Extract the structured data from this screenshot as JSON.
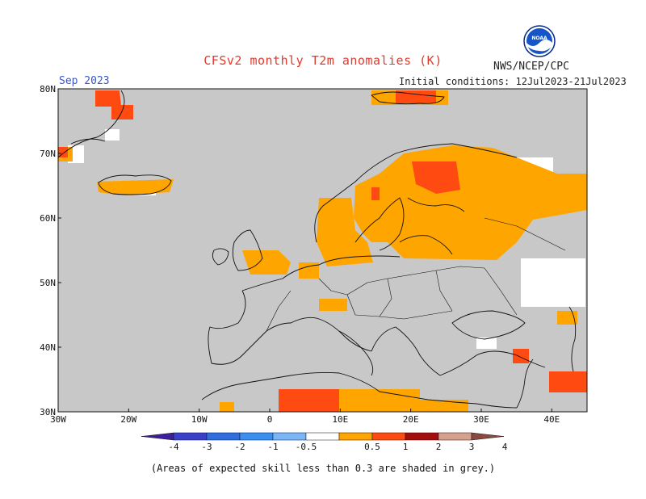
{
  "title": "CFSv2 monthly T2m anomalies (K)",
  "agency": "NWS/NCEP/CPC",
  "logo_text": "NOAA",
  "initial_conditions": "Initial conditions: 12Jul2023-21Jul2023",
  "valid_month": "Sep 2023",
  "footnote": "(Areas of expected skill less than 0.3 are shaded in grey.)",
  "map": {
    "lon_range": [
      -30,
      45
    ],
    "lat_range": [
      30,
      80
    ],
    "lon_ticks": [
      "30W",
      "20W",
      "10W",
      "0",
      "10E",
      "20E",
      "30E",
      "40E"
    ],
    "lat_ticks": [
      "30N",
      "40N",
      "50N",
      "60N",
      "70N",
      "80N"
    ],
    "ocean_color": "#c8c8c8",
    "coast_color": "#111111"
  },
  "colorbar": {
    "labels": [
      "-4",
      "-3",
      "-2",
      "-1",
      "-0.5",
      "0.5",
      "1",
      "2",
      "3",
      "4"
    ],
    "colors": [
      "#3d1f9e",
      "#3a3fc8",
      "#2f6de0",
      "#3b8ff0",
      "#7ab6f7",
      "#ffffff",
      "#ffa500",
      "#ff4a12",
      "#a50d0d",
      "#d6a08f",
      "#8a4a3f"
    ]
  }
}
